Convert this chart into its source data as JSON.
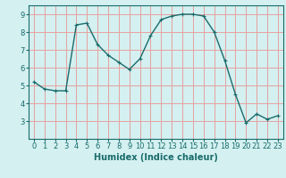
{
  "x": [
    0,
    1,
    2,
    3,
    4,
    5,
    6,
    7,
    8,
    9,
    10,
    11,
    12,
    13,
    14,
    15,
    16,
    17,
    18,
    19,
    20,
    21,
    22,
    23
  ],
  "y": [
    5.2,
    4.8,
    4.7,
    4.7,
    8.4,
    8.5,
    7.3,
    6.7,
    6.3,
    5.9,
    6.5,
    7.8,
    8.7,
    8.9,
    9.0,
    9.0,
    8.9,
    8.0,
    6.4,
    4.5,
    2.9,
    3.4,
    3.1,
    3.3
  ],
  "xlabel": "Humidex (Indice chaleur)",
  "ylim": [
    2.0,
    9.5
  ],
  "xlim": [
    -0.5,
    23.5
  ],
  "bg_color": "#d4f0f0",
  "grid_color": "#e8a0a0",
  "line_color": "#1a6b6b",
  "xticks": [
    0,
    1,
    2,
    3,
    4,
    5,
    6,
    7,
    8,
    9,
    10,
    11,
    12,
    13,
    14,
    15,
    16,
    17,
    18,
    19,
    20,
    21,
    22,
    23
  ],
  "yticks": [
    3,
    4,
    5,
    6,
    7,
    8,
    9
  ],
  "xlabel_fontsize": 7,
  "tick_fontsize": 6,
  "line_width": 1.0,
  "marker_size": 3
}
